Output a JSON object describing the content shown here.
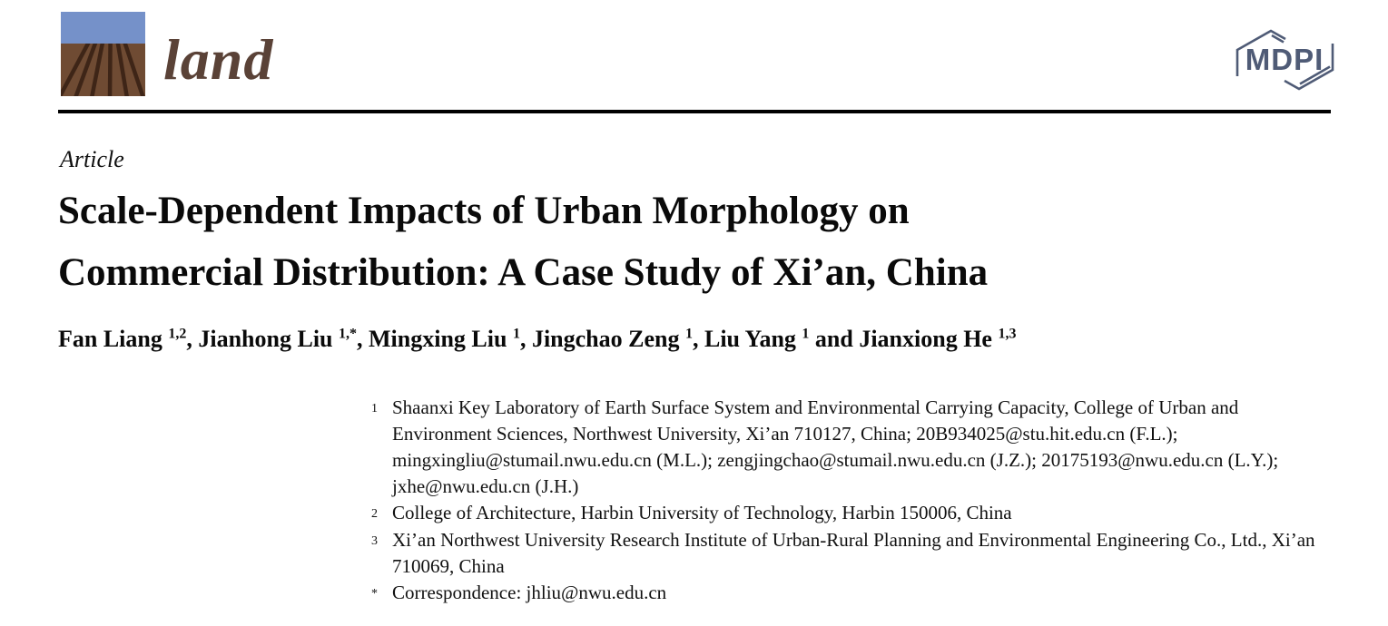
{
  "journal": {
    "name": "land",
    "name_color": "#5a4237",
    "logo_colors": {
      "sky": "#7591c9",
      "field": "#6f4b33",
      "furrow": "#3e2517"
    }
  },
  "publisher": {
    "name": "MDPI",
    "color": "#4f5b76"
  },
  "divider_color": "#000000",
  "article": {
    "type_label": "Article",
    "title_lines": [
      "Scale-Dependent Impacts of Urban Morphology on",
      "Commercial Distribution: A Case Study of Xi’an, China"
    ],
    "authors": [
      {
        "name": "Fan Liang",
        "sup": "1,2"
      },
      {
        "name": "Jianhong Liu",
        "sup": "1,*"
      },
      {
        "name": "Mingxing Liu",
        "sup": "1"
      },
      {
        "name": "Jingchao Zeng",
        "sup": "1"
      },
      {
        "name": "Liu Yang",
        "sup": "1"
      },
      {
        "name": "Jianxiong He",
        "sup": "1,3"
      }
    ],
    "author_separator": ", ",
    "author_last_joiner": " and ",
    "affiliations": [
      {
        "marker": "1",
        "text": "Shaanxi Key Laboratory of Earth Surface System and Environmental Carrying Capacity, College of Urban and Environment Sciences, Northwest University, Xi’an 710127, China; 20B934025@stu.hit.edu.cn (F.L.); mingxingliu@stumail.nwu.edu.cn (M.L.); zengjingchao@stumail.nwu.edu.cn (J.Z.); 20175193@nwu.edu.cn (L.Y.); jxhe@nwu.edu.cn (J.H.)"
      },
      {
        "marker": "2",
        "text": "College of Architecture, Harbin University of Technology, Harbin 150006, China"
      },
      {
        "marker": "3",
        "text": "Xi’an Northwest University Research Institute of Urban-Rural Planning and Environmental Engineering Co., Ltd., Xi’an 710069, China"
      },
      {
        "marker": "*",
        "text": "Correspondence: jhliu@nwu.edu.cn"
      }
    ]
  }
}
